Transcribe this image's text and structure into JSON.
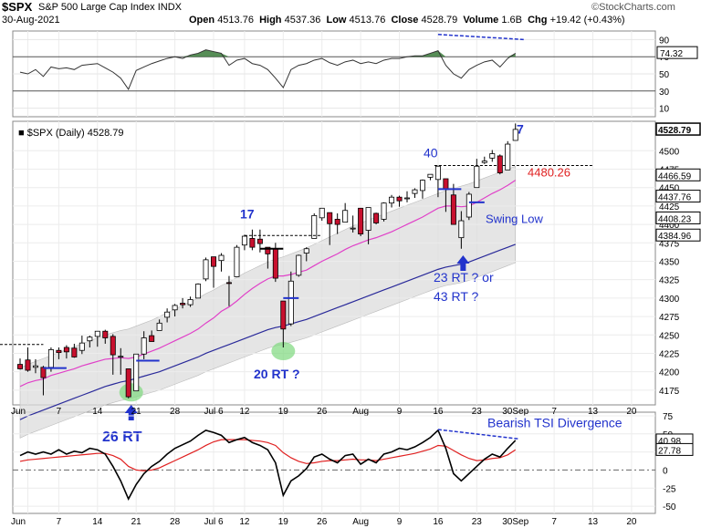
{
  "header": {
    "symbol": "$SPX",
    "name": "S&P 500 Large Cap Index",
    "exchange": "INDX",
    "date": "30-Aug-2021",
    "open_label": "Open",
    "open": "4513.76",
    "high_label": "High",
    "high": "4537.36",
    "low_label": "Low",
    "low": "4513.76",
    "close_label": "Close",
    "close": "4528.79",
    "volume_label": "Volume",
    "volume": "1.6B",
    "chg_label": "Chg",
    "chg": "+19.42 (+0.43%)",
    "source": "©StockCharts.com"
  },
  "colors": {
    "up": "#ffffff",
    "down": "#c8102e",
    "pink_ma": "#e040c8",
    "blue_ma": "#2a2a9a",
    "band": "#dcdcdc",
    "annot_blue": "#2233cc",
    "annot_red": "#e02020",
    "rsi_fill": "#3a7a3a",
    "tsi_red": "#e02020"
  },
  "chart_data": [
    {
      "type": "line",
      "panel": "rsi",
      "yticks": [
        90,
        70,
        50,
        30,
        10
      ],
      "ylim": [
        0,
        100
      ],
      "current_value_label": "74.32",
      "x": [
        "2021-05-28",
        "2021-06-01",
        "2021-06-02",
        "2021-06-03",
        "2021-06-04",
        "2021-06-07",
        "2021-06-08",
        "2021-06-09",
        "2021-06-10",
        "2021-06-11",
        "2021-06-14",
        "2021-06-15",
        "2021-06-16",
        "2021-06-17",
        "2021-06-18",
        "2021-06-21",
        "2021-06-22",
        "2021-06-23",
        "2021-06-24",
        "2021-06-25",
        "2021-06-28",
        "2021-06-29",
        "2021-06-30",
        "2021-07-01",
        "2021-07-02",
        "2021-07-06",
        "2021-07-07",
        "2021-07-08",
        "2021-07-09",
        "2021-07-12",
        "2021-07-13",
        "2021-07-14",
        "2021-07-15",
        "2021-07-16",
        "2021-07-19",
        "2021-07-20",
        "2021-07-21",
        "2021-07-22",
        "2021-07-23",
        "2021-07-26",
        "2021-07-27",
        "2021-07-28",
        "2021-07-29",
        "2021-07-30",
        "2021-08-02",
        "2021-08-03",
        "2021-08-04",
        "2021-08-05",
        "2021-08-06",
        "2021-08-09",
        "2021-08-10",
        "2021-08-11",
        "2021-08-12",
        "2021-08-13",
        "2021-08-16",
        "2021-08-17",
        "2021-08-18",
        "2021-08-19",
        "2021-08-20",
        "2021-08-23",
        "2021-08-24",
        "2021-08-25",
        "2021-08-26",
        "2021-08-27",
        "2021-08-30"
      ],
      "values": [
        52,
        50,
        55,
        47,
        58,
        56,
        57,
        55,
        60,
        61,
        62,
        57,
        52,
        45,
        32,
        54,
        58,
        62,
        65,
        68,
        70,
        68,
        72,
        74,
        78,
        76,
        74,
        60,
        66,
        68,
        62,
        60,
        55,
        45,
        34,
        55,
        60,
        62,
        66,
        68,
        63,
        60,
        64,
        66,
        62,
        64,
        62,
        66,
        68,
        68,
        70,
        71,
        71,
        74,
        77,
        60,
        50,
        45,
        55,
        60,
        64,
        66,
        58,
        68,
        74
      ],
      "annotation": "dashed divergence line (blue)"
    },
    {
      "type": "candlestick",
      "panel": "price",
      "title": "$SPX (Daily) 4528.79",
      "yticks": [
        4175,
        4200,
        4225,
        4250,
        4275,
        4300,
        4325,
        4350,
        4375,
        4400,
        4425,
        4450,
        4475,
        4500
      ],
      "ylim": [
        4155,
        4540
      ],
      "xtick_labels": [
        "Jun",
        "7",
        "14",
        "21",
        "28",
        "Jul 6",
        "12",
        "19",
        "26",
        "Aug",
        "9",
        "16",
        "23",
        "30Sep",
        "7",
        "13",
        "20"
      ],
      "right_labels": [
        "4528.79",
        "4466.59",
        "4437.76",
        "4408.23",
        "4384.96"
      ],
      "price_label_red": "4480.26",
      "ohlc": [
        {
          "d": "2021-05-28",
          "o": 4210,
          "h": 4218,
          "l": 4203,
          "c": 4204
        },
        {
          "d": "2021-06-01",
          "o": 4216,
          "h": 4233,
          "l": 4200,
          "c": 4202
        },
        {
          "d": "2021-06-02",
          "o": 4206,
          "h": 4217,
          "l": 4198,
          "c": 4208
        },
        {
          "d": "2021-06-03",
          "o": 4206,
          "h": 4208,
          "l": 4168,
          "c": 4192
        },
        {
          "d": "2021-06-04",
          "o": 4206,
          "h": 4233,
          "l": 4200,
          "c": 4230
        },
        {
          "d": "2021-06-07",
          "o": 4229,
          "h": 4233,
          "l": 4217,
          "c": 4226
        },
        {
          "d": "2021-06-08",
          "o": 4233,
          "h": 4236,
          "l": 4218,
          "c": 4227
        },
        {
          "d": "2021-06-09",
          "o": 4232,
          "h": 4238,
          "l": 4219,
          "c": 4220
        },
        {
          "d": "2021-06-10",
          "o": 4229,
          "h": 4249,
          "l": 4224,
          "c": 4239
        },
        {
          "d": "2021-06-11",
          "o": 4242,
          "h": 4249,
          "l": 4233,
          "c": 4247
        },
        {
          "d": "2021-06-14",
          "o": 4248,
          "h": 4255,
          "l": 4234,
          "c": 4255
        },
        {
          "d": "2021-06-15",
          "o": 4255,
          "h": 4257,
          "l": 4238,
          "c": 4246
        },
        {
          "d": "2021-06-16",
          "o": 4248,
          "h": 4251,
          "l": 4196,
          "c": 4223
        },
        {
          "d": "2021-06-17",
          "o": 4220,
          "h": 4232,
          "l": 4196,
          "c": 4221
        },
        {
          "d": "2021-06-18",
          "o": 4204,
          "h": 4204,
          "l": 4164,
          "c": 4166
        },
        {
          "d": "2021-06-21",
          "o": 4174,
          "h": 4224,
          "l": 4174,
          "c": 4224
        },
        {
          "d": "2021-06-22",
          "o": 4224,
          "h": 4255,
          "l": 4217,
          "c": 4246
        },
        {
          "d": "2021-06-23",
          "o": 4249,
          "h": 4256,
          "l": 4241,
          "c": 4241
        },
        {
          "d": "2021-06-24",
          "o": 4256,
          "h": 4271,
          "l": 4256,
          "c": 4266
        },
        {
          "d": "2021-06-25",
          "o": 4274,
          "h": 4286,
          "l": 4267,
          "c": 4281
        },
        {
          "d": "2021-06-28",
          "o": 4284,
          "h": 4292,
          "l": 4275,
          "c": 4290
        },
        {
          "d": "2021-06-29",
          "o": 4293,
          "h": 4300,
          "l": 4286,
          "c": 4291
        },
        {
          "d": "2021-06-30",
          "o": 4291,
          "h": 4302,
          "l": 4288,
          "c": 4298
        },
        {
          "d": "2021-07-01",
          "o": 4300,
          "h": 4320,
          "l": 4300,
          "c": 4319
        },
        {
          "d": "2021-07-02",
          "o": 4326,
          "h": 4355,
          "l": 4323,
          "c": 4352
        },
        {
          "d": "2021-07-06",
          "o": 4356,
          "h": 4356,
          "l": 4314,
          "c": 4343
        },
        {
          "d": "2021-07-07",
          "o": 4351,
          "h": 4361,
          "l": 4336,
          "c": 4358
        },
        {
          "d": "2021-07-08",
          "o": 4321,
          "h": 4330,
          "l": 4289,
          "c": 4320
        },
        {
          "d": "2021-07-09",
          "o": 4329,
          "h": 4372,
          "l": 4329,
          "c": 4369
        },
        {
          "d": "2021-07-12",
          "o": 4372,
          "h": 4386,
          "l": 4365,
          "c": 4384
        },
        {
          "d": "2021-07-13",
          "o": 4381,
          "h": 4393,
          "l": 4365,
          "c": 4369
        },
        {
          "d": "2021-07-14",
          "o": 4380,
          "h": 4393,
          "l": 4362,
          "c": 4374
        },
        {
          "d": "2021-07-15",
          "o": 4369,
          "h": 4369,
          "l": 4340,
          "c": 4360
        },
        {
          "d": "2021-07-16",
          "o": 4367,
          "h": 4375,
          "l": 4322,
          "c": 4327
        },
        {
          "d": "2021-07-19",
          "o": 4296,
          "h": 4296,
          "l": 4233,
          "c": 4258
        },
        {
          "d": "2021-07-20",
          "o": 4265,
          "h": 4336,
          "l": 4262,
          "c": 4323
        },
        {
          "d": "2021-07-21",
          "o": 4331,
          "h": 4359,
          "l": 4329,
          "c": 4358
        },
        {
          "d": "2021-07-22",
          "o": 4361,
          "h": 4369,
          "l": 4350,
          "c": 4367
        },
        {
          "d": "2021-07-23",
          "o": 4381,
          "h": 4415,
          "l": 4381,
          "c": 4412
        },
        {
          "d": "2021-07-26",
          "o": 4409,
          "h": 4422,
          "l": 4405,
          "c": 4422
        },
        {
          "d": "2021-07-27",
          "o": 4416,
          "h": 4416,
          "l": 4372,
          "c": 4401
        },
        {
          "d": "2021-07-28",
          "o": 4407,
          "h": 4415,
          "l": 4387,
          "c": 4400
        },
        {
          "d": "2021-07-29",
          "o": 4403,
          "h": 4429,
          "l": 4403,
          "c": 4419
        },
        {
          "d": "2021-07-30",
          "o": 4395,
          "h": 4412,
          "l": 4389,
          "c": 4395
        },
        {
          "d": "2021-08-02",
          "o": 4422,
          "h": 4422,
          "l": 4384,
          "c": 4387
        },
        {
          "d": "2021-08-03",
          "o": 4392,
          "h": 4423,
          "l": 4373,
          "c": 4423
        },
        {
          "d": "2021-08-04",
          "o": 4415,
          "h": 4416,
          "l": 4400,
          "c": 4402
        },
        {
          "d": "2021-08-05",
          "o": 4407,
          "h": 4430,
          "l": 4404,
          "c": 4429
        },
        {
          "d": "2021-08-06",
          "o": 4429,
          "h": 4440,
          "l": 4423,
          "c": 4437
        },
        {
          "d": "2021-08-09",
          "o": 4437,
          "h": 4439,
          "l": 4424,
          "c": 4432
        },
        {
          "d": "2021-08-10",
          "o": 4436,
          "h": 4445,
          "l": 4430,
          "c": 4436
        },
        {
          "d": "2021-08-11",
          "o": 4442,
          "h": 4449,
          "l": 4436,
          "c": 4447
        },
        {
          "d": "2021-08-12",
          "o": 4446,
          "h": 4461,
          "l": 4435,
          "c": 4460
        },
        {
          "d": "2021-08-13",
          "o": 4464,
          "h": 4468,
          "l": 4460,
          "c": 4468
        },
        {
          "d": "2021-08-16",
          "o": 4461,
          "h": 4480,
          "l": 4437,
          "c": 4479
        },
        {
          "d": "2021-08-17",
          "o": 4462,
          "h": 4462,
          "l": 4417,
          "c": 4448
        },
        {
          "d": "2021-08-18",
          "o": 4440,
          "h": 4455,
          "l": 4400,
          "c": 4400
        },
        {
          "d": "2021-08-19",
          "o": 4382,
          "h": 4418,
          "l": 4367,
          "c": 4405
        },
        {
          "d": "2021-08-20",
          "o": 4410,
          "h": 4444,
          "l": 4406,
          "c": 4441
        },
        {
          "d": "2021-08-23",
          "o": 4450,
          "h": 4489,
          "l": 4450,
          "c": 4479
        },
        {
          "d": "2021-08-24",
          "o": 4484,
          "h": 4492,
          "l": 4482,
          "c": 4486
        },
        {
          "d": "2021-08-25",
          "o": 4490,
          "h": 4501,
          "l": 4485,
          "c": 4496
        },
        {
          "d": "2021-08-26",
          "o": 4493,
          "h": 4495,
          "l": 4468,
          "c": 4470
        },
        {
          "d": "2021-08-27",
          "o": 4474,
          "h": 4513,
          "l": 4474,
          "c": 4509
        },
        {
          "d": "2021-08-30",
          "o": 4514,
          "h": 4537,
          "l": 4514,
          "c": 4529
        }
      ],
      "ma_pink": [
        4180,
        4185,
        4188,
        4190,
        4195,
        4198,
        4201,
        4204,
        4208,
        4211,
        4214,
        4217,
        4218,
        4219,
        4218,
        4220,
        4224,
        4228,
        4232,
        4237,
        4242,
        4247,
        4252,
        4258,
        4266,
        4273,
        4282,
        4288,
        4296,
        4305,
        4313,
        4320,
        4326,
        4330,
        4330,
        4332,
        4335,
        4338,
        4344,
        4350,
        4355,
        4360,
        4366,
        4371,
        4375,
        4379,
        4382,
        4386,
        4390,
        4395,
        4400,
        4405,
        4410,
        4416,
        4422,
        4425,
        4425,
        4424,
        4425,
        4430,
        4436,
        4442,
        4447,
        4453,
        4460
      ],
      "ma_blue": [
        4135,
        4140,
        4144,
        4148,
        4152,
        4156,
        4160,
        4164,
        4168,
        4172,
        4176,
        4180,
        4183,
        4186,
        4188,
        4191,
        4194,
        4197,
        4200,
        4204,
        4208,
        4212,
        4216,
        4220,
        4225,
        4229,
        4233,
        4237,
        4241,
        4245,
        4249,
        4253,
        4257,
        4260,
        4262,
        4265,
        4268,
        4271,
        4275,
        4279,
        4283,
        4287,
        4291,
        4295,
        4299,
        4303,
        4307,
        4311,
        4315,
        4319,
        4323,
        4327,
        4331,
        4335,
        4339,
        4342,
        4344,
        4346,
        4349,
        4353,
        4357,
        4361,
        4365,
        4369,
        4373
      ],
      "band_upper": [
        4205,
        4210,
        4214,
        4218,
        4222,
        4226,
        4230,
        4234,
        4238,
        4242,
        4246,
        4250,
        4253,
        4256,
        4258,
        4262,
        4266,
        4270,
        4275,
        4280,
        4285,
        4290,
        4295,
        4300,
        4306,
        4311,
        4317,
        4322,
        4328,
        4334,
        4339,
        4344,
        4349,
        4353,
        4356,
        4360,
        4364,
        4368,
        4373,
        4378,
        4383,
        4388,
        4393,
        4398,
        4402,
        4406,
        4410,
        4414,
        4418,
        4422,
        4426,
        4430,
        4434,
        4438,
        4442,
        4446,
        4449,
        4452,
        4455,
        4459,
        4463,
        4467,
        4471,
        4475,
        4479
      ],
      "band_lower": [
        4110,
        4115,
        4119,
        4123,
        4127,
        4131,
        4135,
        4139,
        4143,
        4147,
        4151,
        4155,
        4158,
        4161,
        4163,
        4166,
        4169,
        4172,
        4175,
        4179,
        4183,
        4187,
        4191,
        4195,
        4200,
        4204,
        4208,
        4212,
        4216,
        4220,
        4224,
        4228,
        4232,
        4235,
        4237,
        4240,
        4243,
        4246,
        4250,
        4254,
        4258,
        4262,
        4266,
        4270,
        4274,
        4278,
        4282,
        4286,
        4290,
        4294,
        4298,
        4302,
        4306,
        4310,
        4314,
        4317,
        4319,
        4321,
        4324,
        4328,
        4332,
        4336,
        4340,
        4344,
        4348
      ],
      "resistance_4480": 4480
    },
    {
      "type": "line",
      "panel": "tsi",
      "yticks": [
        75,
        50,
        25,
        0,
        -25,
        -50
      ],
      "ylim": [
        -60,
        80
      ],
      "value_labels": [
        "40.98",
        "27.78"
      ],
      "tsi": [
        20,
        25,
        22,
        25,
        22,
        28,
        22,
        26,
        24,
        30,
        28,
        22,
        5,
        -15,
        -40,
        -20,
        -5,
        5,
        12,
        22,
        30,
        35,
        40,
        48,
        55,
        52,
        48,
        38,
        42,
        45,
        38,
        34,
        28,
        10,
        -35,
        -15,
        -8,
        2,
        18,
        22,
        15,
        10,
        20,
        22,
        8,
        15,
        10,
        22,
        25,
        30,
        28,
        32,
        38,
        45,
        55,
        30,
        -5,
        -15,
        -5,
        5,
        15,
        22,
        18,
        30,
        41
      ],
      "signal": [
        12,
        14,
        15,
        16,
        17,
        18,
        19,
        20,
        21,
        22,
        23,
        23,
        20,
        15,
        5,
        0,
        -1,
        0,
        3,
        8,
        13,
        18,
        23,
        28,
        34,
        39,
        42,
        42,
        42,
        42,
        41,
        40,
        38,
        34,
        24,
        17,
        12,
        9,
        10,
        12,
        13,
        13,
        14,
        15,
        14,
        14,
        13,
        15,
        17,
        19,
        21,
        23,
        26,
        29,
        34,
        33,
        27,
        21,
        16,
        13,
        14,
        16,
        17,
        21,
        28
      ]
    }
  ],
  "annotations": {
    "a17": "17",
    "a40": "40",
    "a7": "7",
    "a4480": "4480.26",
    "swing_low": "Swing Low",
    "rt23": "23 RT ? or",
    "rt43": "43 RT ?",
    "rt20": "20 RT ?",
    "rt26": "26 RT",
    "tsi_div": "Bearish TSI Divergence"
  }
}
